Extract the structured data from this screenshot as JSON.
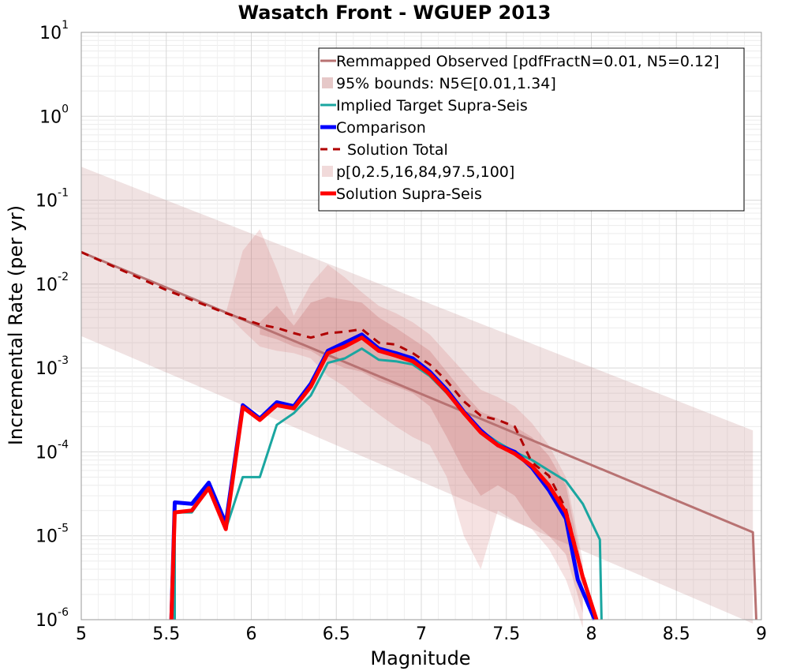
{
  "chart_data": {
    "type": "line",
    "title": "Wasatch Front - WGUEP 2013",
    "xlabel": "Magnitude",
    "ylabel": "Incremental Rate (per yr)",
    "xlim": [
      5,
      9
    ],
    "ylim": [
      1e-06,
      10
    ],
    "yscale": "log",
    "grid": true,
    "legend_position": "top-right",
    "x_ticks": [
      "5",
      "5.5",
      "6",
      "6.5",
      "7",
      "7.5",
      "8",
      "8.5",
      "9"
    ],
    "y_ticks": [
      {
        "base": "10",
        "exp": "-6",
        "value": 1e-06
      },
      {
        "base": "10",
        "exp": "-5",
        "value": 1e-05
      },
      {
        "base": "10",
        "exp": "-4",
        "value": 0.0001
      },
      {
        "base": "10",
        "exp": "-3",
        "value": 0.001
      },
      {
        "base": "10",
        "exp": "-2",
        "value": 0.01
      },
      {
        "base": "10",
        "exp": "-1",
        "value": 0.1
      },
      {
        "base": "10",
        "exp": "0",
        "value": 1
      },
      {
        "base": "10",
        "exp": "1",
        "value": 10
      }
    ],
    "bands": [
      {
        "legend": "95% bounds: N5∈[0.01,1.34]",
        "color": "#bc7a7a",
        "opacity": 0.22,
        "x": [
          5.0,
          8.95,
          8.95
        ],
        "upper": [
          0.25,
          0.00018,
          0.00018
        ],
        "lower": [
          0.0024,
          9e-07,
          1e-06
        ]
      },
      {
        "legend": "p[0,2.5,16,84,97.5,100]",
        "color": "#d06f6f",
        "opacity": 0.2,
        "x": [
          5.85,
          5.95,
          6.05,
          6.15,
          6.25,
          6.35,
          6.45,
          6.55,
          6.65,
          6.75,
          6.85,
          6.95,
          7.05,
          7.15,
          7.25,
          7.35,
          7.45,
          7.55,
          7.65,
          7.75,
          7.85,
          7.95
        ],
        "upper": [
          0.0045,
          0.025,
          0.045,
          0.015,
          0.0042,
          0.01,
          0.017,
          0.012,
          0.008,
          0.0055,
          0.0045,
          0.0035,
          0.0025,
          0.0015,
          0.0009,
          0.00055,
          0.00045,
          0.00035,
          0.00022,
          0.00012,
          5e-05,
          5e-06
        ],
        "lower": [
          0.0045,
          0.0028,
          0.0018,
          0.0016,
          0.0015,
          0.0013,
          0.0008,
          0.0006,
          0.0004,
          0.00028,
          0.0002,
          0.00015,
          0.00012,
          5e-05,
          1e-05,
          4e-06,
          2e-05,
          1.5e-05,
          1.2e-05,
          7e-06,
          3e-06,
          8e-07
        ]
      },
      {
        "legend": "",
        "color": "#c05050",
        "opacity": 0.22,
        "x": [
          6.05,
          6.15,
          6.25,
          6.35,
          6.45,
          6.55,
          6.65,
          6.75,
          6.85,
          6.95,
          7.05,
          7.15,
          7.25,
          7.35,
          7.45,
          7.55,
          7.65,
          7.75,
          7.85,
          7.95
        ],
        "upper": [
          0.0035,
          0.0055,
          0.0032,
          0.006,
          0.007,
          0.0065,
          0.006,
          0.004,
          0.003,
          0.0022,
          0.0016,
          0.0009,
          0.0005,
          0.0003,
          0.00025,
          0.0002,
          0.00015,
          9e-05,
          4e-05,
          4e-06
        ],
        "lower": [
          0.0025,
          0.0022,
          0.0018,
          0.0016,
          0.0012,
          0.001,
          0.0009,
          0.0007,
          0.0006,
          0.0005,
          0.00035,
          0.00015,
          6e-05,
          3e-05,
          4e-05,
          3e-05,
          1.5e-05,
          1e-05,
          6e-06,
          1.2e-06
        ]
      }
    ],
    "series": [
      {
        "name": "Remmapped Observed [pdfFractN=0.01, N5=0.12]",
        "color": "#b87272",
        "width": 3,
        "dash": "",
        "x": [
          5.0,
          8.95,
          8.97
        ],
        "y": [
          0.024,
          1.1e-05,
          1e-06
        ]
      },
      {
        "name": "Implied Target Supra-Seis",
        "color": "#1aa6a0",
        "width": 3,
        "dash": "",
        "x": [
          5.55,
          5.55,
          5.65,
          5.75,
          5.85,
          5.95,
          6.05,
          6.15,
          6.25,
          6.35,
          6.45,
          6.55,
          6.65,
          6.75,
          6.85,
          6.95,
          7.05,
          7.15,
          7.25,
          7.35,
          7.45,
          7.55,
          7.65,
          7.75,
          7.85,
          7.95,
          8.05,
          8.06
        ],
        "y": [
          1e-06,
          1.9e-05,
          1.9e-05,
          3.7e-05,
          1.2e-05,
          5e-05,
          5e-05,
          0.00021,
          0.00029,
          0.00047,
          0.00115,
          0.0013,
          0.0017,
          0.00125,
          0.0012,
          0.0011,
          0.0008,
          0.0005,
          0.0003,
          0.00018,
          0.00013,
          0.0001,
          8e-05,
          6e-05,
          4.5e-05,
          2.4e-05,
          9e-06,
          1e-06
        ]
      },
      {
        "name": "Comparison",
        "color": "#0000ff",
        "width": 5,
        "dash": "",
        "x": [
          5.53,
          5.55,
          5.65,
          5.75,
          5.85,
          5.95,
          6.05,
          6.15,
          6.25,
          6.35,
          6.45,
          6.55,
          6.65,
          6.75,
          6.85,
          6.95,
          7.05,
          7.15,
          7.25,
          7.35,
          7.45,
          7.55,
          7.65,
          7.75,
          7.85,
          7.92,
          8.02
        ],
        "y": [
          1e-06,
          2.5e-05,
          2.4e-05,
          4.3e-05,
          1.4e-05,
          0.00036,
          0.00025,
          0.00039,
          0.00035,
          0.00065,
          0.0016,
          0.002,
          0.0025,
          0.0017,
          0.0015,
          0.0013,
          0.0009,
          0.00055,
          0.0003,
          0.00018,
          0.00012,
          0.0001,
          6.5e-05,
          3.5e-05,
          1.6e-05,
          3e-06,
          1e-06
        ]
      },
      {
        "name": "Solution Total",
        "color": "#b00000",
        "width": 3,
        "dash": "10,8",
        "x": [
          5.0,
          5.5,
          5.85,
          6.05,
          6.15,
          6.25,
          6.35,
          6.45,
          6.55,
          6.65,
          6.75,
          6.85,
          6.95,
          7.05,
          7.15,
          7.25,
          7.35,
          7.45,
          7.55,
          7.65,
          7.75,
          7.85,
          7.95,
          8.03
        ],
        "y": [
          0.024,
          0.0085,
          0.0045,
          0.0033,
          0.003,
          0.0026,
          0.0023,
          0.0026,
          0.0027,
          0.0029,
          0.002,
          0.0019,
          0.0015,
          0.0011,
          0.0007,
          0.0004,
          0.00027,
          0.00024,
          0.0002,
          7.5e-05,
          5.2e-05,
          2.1e-05,
          3.5e-06,
          1e-06
        ]
      },
      {
        "name": "Solution Supra-Seis",
        "color": "#ff0000",
        "width": 5,
        "dash": "",
        "x": [
          5.53,
          5.55,
          5.65,
          5.75,
          5.85,
          5.95,
          6.05,
          6.15,
          6.25,
          6.35,
          6.45,
          6.55,
          6.65,
          6.75,
          6.85,
          6.95,
          7.05,
          7.15,
          7.25,
          7.35,
          7.45,
          7.55,
          7.65,
          7.75,
          7.85,
          7.95,
          8.03
        ],
        "y": [
          1e-06,
          1.9e-05,
          2e-05,
          3.7e-05,
          1.2e-05,
          0.00034,
          0.00024,
          0.00036,
          0.00033,
          0.0006,
          0.0015,
          0.0018,
          0.0023,
          0.0016,
          0.0014,
          0.0012,
          0.00085,
          0.00052,
          0.00029,
          0.00017,
          0.00012,
          9.5e-05,
          6.8e-05,
          4e-05,
          1.9e-05,
          3.2e-06,
          1e-06
        ]
      }
    ],
    "legend": [
      {
        "label": "Remmapped Observed [pdfFractN=0.01, N5=0.12]",
        "kind": "line",
        "color": "#b87272",
        "dash": "",
        "width": 3
      },
      {
        "label": "95% bounds: N5∈[0.01,1.34]",
        "kind": "patch",
        "color": "#e6c8c8"
      },
      {
        "label": "Implied Target Supra-Seis",
        "kind": "line",
        "color": "#1aa6a0",
        "dash": "",
        "width": 3
      },
      {
        "label": "Comparison",
        "kind": "line",
        "color": "#0000ff",
        "dash": "",
        "width": 5
      },
      {
        "label": "Solution Total",
        "kind": "line",
        "color": "#b00000",
        "dash": "10,8",
        "width": 3
      },
      {
        "label": "p[0,2.5,16,84,97.5,100]",
        "kind": "patch",
        "color": "#f1dada"
      },
      {
        "label": "Solution Supra-Seis",
        "kind": "line",
        "color": "#ff0000",
        "dash": "",
        "width": 5
      }
    ]
  }
}
